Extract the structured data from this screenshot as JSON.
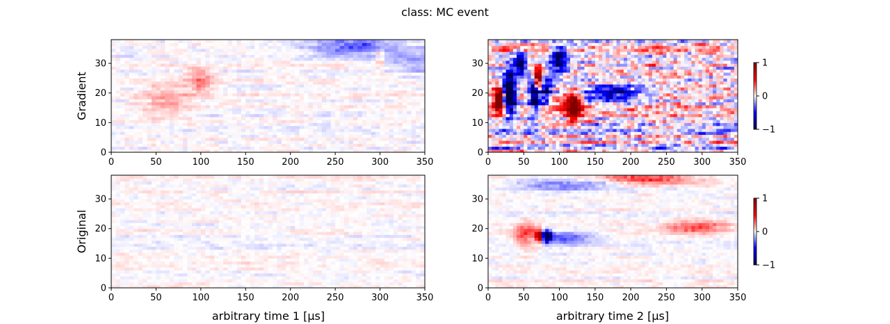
{
  "figure": {
    "title": "class: MC event",
    "row_labels": [
      "Gradient",
      "Original"
    ],
    "col_xlabels": [
      "arbitrary time 1 [μs]",
      "arbitrary time 2 [μs]"
    ]
  },
  "chart_data": [
    {
      "type": "heatmap",
      "panel": "gradient-time1",
      "xlim": [
        0,
        350
      ],
      "ylim": [
        0,
        38
      ],
      "xticks": [
        "0",
        "50",
        "100",
        "150",
        "200",
        "250",
        "300",
        "350"
      ],
      "yticks": [
        "0",
        "10",
        "20",
        "30"
      ],
      "color_range": [
        -1,
        1
      ],
      "colormap": "seismic",
      "value_scale": 0.12,
      "features": [
        {
          "x": 100,
          "y": 24,
          "sx": 10,
          "sy": 3,
          "v": 0.25
        },
        {
          "x": 60,
          "y": 18,
          "sx": 20,
          "sy": 4,
          "v": 0.18
        },
        {
          "x": 400,
          "y": 31,
          "sx": 60,
          "sy": 3,
          "v": -0.3
        },
        {
          "x": 270,
          "y": 36,
          "sx": 30,
          "sy": 2,
          "v": -0.35
        },
        {
          "x": 300,
          "y": 32,
          "sx": 4,
          "sy": 3,
          "v": 0.2
        }
      ]
    },
    {
      "type": "heatmap",
      "panel": "gradient-time2",
      "xlim": [
        0,
        350
      ],
      "ylim": [
        0,
        38
      ],
      "xticks": [
        "0",
        "50",
        "100",
        "150",
        "200",
        "250",
        "300",
        "350"
      ],
      "yticks": [
        "0",
        "10",
        "20",
        "30"
      ],
      "color_range": [
        -1,
        1
      ],
      "colormap": "seismic",
      "value_scale": 0.55,
      "features": [
        {
          "x": 30,
          "y": 20,
          "sx": 6,
          "sy": 5,
          "v": -1.6
        },
        {
          "x": 15,
          "y": 18,
          "sx": 5,
          "sy": 3,
          "v": 1.4
        },
        {
          "x": 70,
          "y": 25,
          "sx": 5,
          "sy": 3,
          "v": 1.3
        },
        {
          "x": 65,
          "y": 20,
          "sx": 5,
          "sy": 4,
          "v": -1.3
        },
        {
          "x": 120,
          "y": 16,
          "sx": 8,
          "sy": 3,
          "v": 1.2
        },
        {
          "x": 80,
          "y": 21,
          "sx": 6,
          "sy": 3,
          "v": -1.0
        },
        {
          "x": 100,
          "y": 32,
          "sx": 8,
          "sy": 3,
          "v": -1.1
        },
        {
          "x": 175,
          "y": 20,
          "sx": 30,
          "sy": 2,
          "v": -0.8
        },
        {
          "x": 45,
          "y": 30,
          "sx": 5,
          "sy": 3,
          "v": -1.0
        }
      ]
    },
    {
      "type": "heatmap",
      "panel": "original-time1",
      "xlim": [
        0,
        350
      ],
      "ylim": [
        0,
        38
      ],
      "xticks": [
        "0",
        "50",
        "100",
        "150",
        "200",
        "250",
        "300",
        "350"
      ],
      "yticks": [
        "0",
        "10",
        "20",
        "30"
      ],
      "color_range": [
        -1,
        1
      ],
      "colormap": "seismic",
      "value_scale": 0.1,
      "features": []
    },
    {
      "type": "heatmap",
      "panel": "original-time2",
      "xlim": [
        0,
        350
      ],
      "ylim": [
        0,
        38
      ],
      "xticks": [
        "0",
        "50",
        "100",
        "150",
        "200",
        "250",
        "300",
        "350"
      ],
      "yticks": [
        "0",
        "10",
        "20",
        "30"
      ],
      "color_range": [
        -1,
        1
      ],
      "colormap": "seismic",
      "value_scale": 0.1,
      "features": [
        {
          "x": 72,
          "y": 17.5,
          "sx": 3,
          "sy": 1.2,
          "v": 1.4
        },
        {
          "x": 82,
          "y": 17.5,
          "sx": 5,
          "sy": 1.3,
          "v": -1.3
        },
        {
          "x": 55,
          "y": 18,
          "sx": 12,
          "sy": 3,
          "v": 0.4
        },
        {
          "x": 110,
          "y": 17,
          "sx": 30,
          "sy": 1.5,
          "v": -0.3
        },
        {
          "x": 290,
          "y": 20.5,
          "sx": 30,
          "sy": 1.5,
          "v": 0.35
        },
        {
          "x": 220,
          "y": 37,
          "sx": 45,
          "sy": 1.5,
          "v": 0.4
        },
        {
          "x": 120,
          "y": 35,
          "sx": 60,
          "sy": 1.2,
          "v": -0.3
        }
      ]
    }
  ],
  "colorbars": [
    {
      "ticks": [
        "1",
        "0",
        "−1"
      ]
    },
    {
      "ticks": [
        "1",
        "0",
        "−1"
      ]
    }
  ]
}
